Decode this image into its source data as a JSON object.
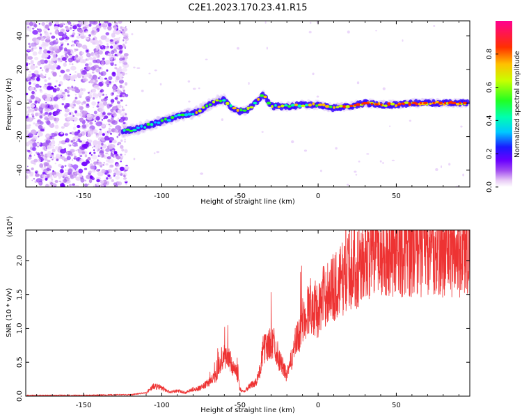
{
  "title": "C2E1.2023.170.23.41.R15",
  "chart_data": [
    {
      "type": "heatmap",
      "xlabel": "Height of straight line (km)",
      "ylabel": "Frequency (Hz)",
      "xlim": [
        -187,
        97
      ],
      "ylim": [
        -50,
        49
      ],
      "xticks": [
        -150,
        -100,
        -50,
        0,
        50
      ],
      "yticks": [
        -40,
        -20,
        0,
        20,
        40
      ],
      "colorbar": {
        "label": "Normalized spectral amplitude",
        "range": [
          0.0,
          1.0
        ],
        "ticks": [
          "0.0",
          "0.2",
          "0.4",
          "0.6",
          "0.8"
        ]
      },
      "ridge": {
        "x": [
          -125,
          -115,
          -100,
          -90,
          -80,
          -75,
          -70,
          -65,
          -60,
          -55,
          -50,
          -45,
          -40,
          -35,
          -30,
          -25,
          -20,
          -10,
          0,
          10,
          20,
          30,
          40,
          50,
          60,
          70,
          80,
          95
        ],
        "frequency": [
          -17,
          -15,
          -11,
          -8,
          -6,
          -4,
          -1,
          1,
          2,
          -3,
          -5,
          -4,
          0,
          5,
          -2,
          -2,
          -2,
          -1,
          -1,
          -3,
          -2,
          0,
          -1,
          -1,
          0,
          0,
          0,
          0
        ]
      },
      "noise_region_x": [
        -187,
        -125
      ]
    },
    {
      "type": "line",
      "xlabel": "Height of straight line (km)",
      "ylabel": "SNR (10 * v/v)",
      "y_scale_note": "(x10⁴)",
      "xlim": [
        -187,
        97
      ],
      "ylim": [
        0,
        2.45
      ],
      "xticks": [
        -150,
        -100,
        -50,
        0,
        50
      ],
      "yticks": [
        0.0,
        0.5,
        1.0,
        1.5,
        2.0
      ],
      "color": "#ee3333",
      "series": [
        {
          "x": [
            -187,
            -170,
            -150,
            -130,
            -120,
            -110,
            -105,
            -100,
            -95,
            -90,
            -85,
            -80,
            -75,
            -70,
            -65,
            -62,
            -58,
            -55,
            -52,
            -50,
            -47,
            -44,
            -40,
            -37,
            -35,
            -32,
            -28,
            -25,
            -22,
            -20,
            -18,
            -15,
            -12,
            -10,
            -8,
            -5,
            -2,
            0,
            3,
            6,
            10,
            13,
            16,
            20,
            25,
            30,
            35,
            40,
            50,
            60,
            70,
            80,
            90,
            97
          ],
          "values": [
            0.01,
            0.01,
            0.01,
            0.02,
            0.02,
            0.05,
            0.15,
            0.12,
            0.06,
            0.08,
            0.05,
            0.1,
            0.12,
            0.2,
            0.3,
            0.55,
            0.6,
            0.45,
            0.35,
            0.1,
            0.07,
            0.15,
            0.2,
            0.4,
            0.7,
            0.75,
            0.8,
            0.55,
            0.4,
            0.3,
            0.45,
            0.75,
            0.9,
            1.1,
            1.2,
            1.35,
            1.3,
            1.25,
            1.45,
            1.55,
            1.6,
            1.65,
            1.75,
            1.85,
            1.9,
            2.05,
            2.1,
            2.15,
            2.15,
            2.15,
            2.15,
            2.12,
            2.13,
            2.15
          ]
        }
      ]
    }
  ]
}
